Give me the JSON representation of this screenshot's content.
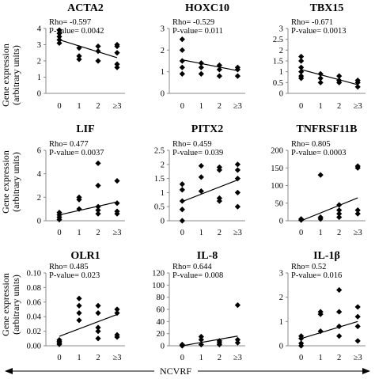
{
  "ylabel_lines": [
    "Gene expression",
    "(arbitrary units)"
  ],
  "xlabel": "NCVRF",
  "chart_data": [
    {
      "type": "scatter",
      "title": "ACTA2",
      "rho": "Rho= -0.597",
      "pvalue": "P-value= 0.0042",
      "categories": [
        "0",
        "1",
        "2",
        "≥3"
      ],
      "ylim": [
        0,
        4
      ],
      "yticks": [
        "0",
        "1",
        "2",
        "3",
        "4"
      ],
      "x": [
        0,
        0,
        0,
        0,
        0,
        1,
        1,
        1,
        2,
        2,
        2,
        3,
        3,
        3,
        3,
        3
      ],
      "y": [
        3.1,
        3.3,
        3.5,
        3.7,
        3.9,
        2.8,
        2.3,
        2.1,
        2.9,
        2.6,
        2.0,
        3.0,
        2.9,
        2.5,
        1.8,
        1.6
      ],
      "trend": [
        3.3,
        2.2
      ]
    },
    {
      "type": "scatter",
      "title": "HOXC10",
      "rho": "Rho= -0.529",
      "pvalue": "P-value= 0.011",
      "categories": [
        "0",
        "1",
        "2",
        "≥3"
      ],
      "ylim": [
        0,
        3
      ],
      "yticks": [
        "0",
        "1",
        "2",
        "3"
      ],
      "x": [
        0,
        0,
        0,
        0,
        0,
        1,
        1,
        1,
        2,
        2,
        2,
        3,
        3,
        3
      ],
      "y": [
        2.5,
        2.0,
        1.5,
        1.2,
        0.9,
        1.4,
        1.2,
        0.9,
        1.3,
        1.1,
        0.8,
        1.2,
        1.1,
        0.8
      ],
      "trend": [
        1.55,
        1.05
      ]
    },
    {
      "type": "scatter",
      "title": "TBX15",
      "rho": "Rho= -0.671",
      "pvalue": "P-value= 0.0013",
      "categories": [
        "0",
        "1",
        "2",
        "≥3"
      ],
      "ylim": [
        0,
        3
      ],
      "yticks": [
        "0",
        "0.5",
        "1",
        "1.5",
        "2",
        "2.5",
        "3"
      ],
      "x": [
        0,
        0,
        0,
        0,
        0,
        0,
        1,
        1,
        1,
        2,
        2,
        2,
        3,
        3,
        3
      ],
      "y": [
        1.7,
        1.5,
        1.2,
        1.0,
        0.8,
        0.7,
        0.9,
        0.7,
        0.5,
        0.8,
        0.6,
        0.5,
        0.6,
        0.5,
        0.3
      ],
      "trend": [
        1.1,
        0.4
      ]
    },
    {
      "type": "scatter",
      "title": "LIF",
      "rho": "Rho= 0.477",
      "pvalue": "P-value= 0.0037",
      "categories": [
        "0",
        "1",
        "2",
        "≥3"
      ],
      "ylim": [
        0,
        6
      ],
      "yticks": [
        "0",
        "2",
        "4",
        "6"
      ],
      "x": [
        0,
        0,
        0,
        0,
        1,
        1,
        1,
        2,
        2,
        2,
        2,
        2,
        3,
        3,
        3,
        3
      ],
      "y": [
        0.7,
        0.5,
        0.3,
        0.1,
        2.0,
        1.8,
        1.0,
        4.9,
        3.0,
        1.2,
        0.9,
        0.6,
        3.4,
        1.5,
        0.8,
        0.6
      ],
      "trend": [
        0.5,
        1.6
      ]
    },
    {
      "type": "scatter",
      "title": "PITX2",
      "rho": "Rho= 0.459",
      "pvalue": "P-value= 0.039",
      "categories": [
        "0",
        "1",
        "2",
        "≥3"
      ],
      "ylim": [
        0,
        2.5
      ],
      "yticks": [
        "0",
        "0.5",
        "1",
        "1.5",
        "2",
        "2.5"
      ],
      "x": [
        0,
        0,
        0,
        0,
        0,
        1,
        1,
        1,
        2,
        2,
        2,
        2,
        3,
        3,
        3,
        3,
        3
      ],
      "y": [
        1.3,
        1.1,
        0.7,
        0.4,
        0.0,
        1.95,
        1.55,
        1.05,
        1.9,
        1.8,
        0.8,
        0.7,
        2.0,
        1.8,
        1.5,
        1.0,
        0.5
      ],
      "trend": [
        0.68,
        1.45
      ]
    },
    {
      "type": "scatter",
      "title": "TNFRSF11B",
      "rho": "Rho= 0.805",
      "pvalue": "P-value= 0.0003",
      "categories": [
        "0",
        "1",
        "2",
        "≥3"
      ],
      "ylim": [
        0,
        200
      ],
      "yticks": [
        "0",
        "50",
        "100",
        "150",
        "200"
      ],
      "x": [
        0,
        0,
        1,
        1,
        1,
        2,
        2,
        2,
        2,
        3,
        3,
        3,
        3
      ],
      "y": [
        5,
        2,
        130,
        10,
        5,
        45,
        30,
        20,
        10,
        155,
        150,
        30,
        20
      ],
      "trend": [
        0,
        65
      ]
    },
    {
      "type": "scatter",
      "title": "OLR1",
      "rho": "Rho= 0.485",
      "pvalue": "P-value= 0.023",
      "categories": [
        "0",
        "1",
        "2",
        "≥3"
      ],
      "ylim": [
        0,
        0.1
      ],
      "yticks": [
        "0.00",
        "0.02",
        "0.04",
        "0.06",
        "0.08",
        "0.10"
      ],
      "x": [
        0,
        0,
        0,
        0,
        1,
        1,
        1,
        1,
        2,
        2,
        2,
        2,
        2,
        3,
        3,
        3,
        3
      ],
      "y": [
        0.008,
        0.006,
        0.004,
        0.002,
        0.065,
        0.055,
        0.045,
        0.035,
        0.055,
        0.045,
        0.025,
        0.02,
        0.01,
        0.05,
        0.045,
        0.015,
        0.012
      ],
      "trend": [
        0.013,
        0.043
      ]
    },
    {
      "type": "scatter",
      "title": "IL-8",
      "rho": "Rho= 0.644",
      "pvalue": "P-value= 0.008",
      "categories": [
        "0",
        "1",
        "2",
        "≥3"
      ],
      "ylim": [
        0,
        120
      ],
      "yticks": [
        "0",
        "20",
        "40",
        "60",
        "80",
        "100",
        "120"
      ],
      "x": [
        0,
        0,
        0,
        1,
        1,
        1,
        2,
        2,
        2,
        3,
        3,
        3
      ],
      "y": [
        2,
        1,
        0,
        15,
        10,
        2,
        8,
        5,
        2,
        67,
        10,
        5
      ],
      "trend": [
        0,
        16
      ]
    },
    {
      "type": "scatter",
      "title": "IL-1β",
      "rho": "Rho= 0.52",
      "pvalue": "P-value= 0.016",
      "categories": [
        "0",
        "1",
        "2",
        "≥3"
      ],
      "ylim": [
        0,
        3
      ],
      "yticks": [
        "0",
        "1",
        "2",
        "3"
      ],
      "x": [
        0,
        0,
        0,
        0,
        1,
        1,
        1,
        2,
        2,
        2,
        2,
        3,
        3,
        3,
        3
      ],
      "y": [
        0.4,
        0.3,
        0.1,
        0.0,
        1.4,
        1.3,
        0.6,
        2.3,
        1.4,
        0.8,
        0.4,
        1.6,
        1.2,
        0.8,
        0.2
      ],
      "trend": [
        0.3,
        1.0
      ]
    }
  ]
}
